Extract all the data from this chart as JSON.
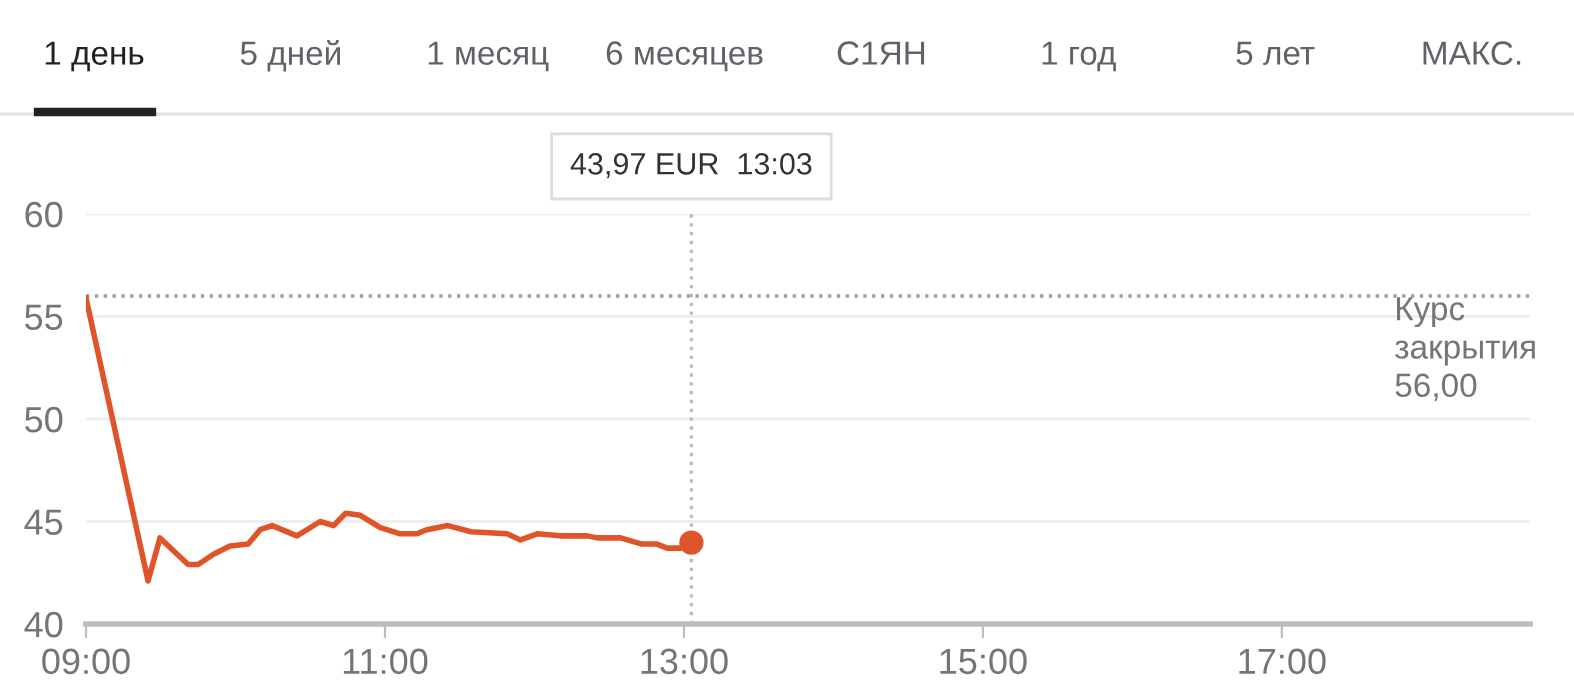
{
  "chart_data": {
    "type": "line",
    "x": [
      9.0,
      9.415,
      9.495,
      9.683,
      9.75,
      9.853,
      9.964,
      10.085,
      10.165,
      10.246,
      10.411,
      10.567,
      10.656,
      10.737,
      10.835,
      10.969,
      11.103,
      11.214,
      11.28,
      11.42,
      11.576,
      11.817,
      11.906,
      12.018,
      12.174,
      12.353,
      12.42,
      12.576,
      12.719,
      12.82,
      12.888,
      12.977,
      13.05
    ],
    "series": [
      {
        "color": "#e0542a",
        "values": [
          55.9,
          42.1,
          44.2,
          42.9,
          42.9,
          43.4,
          43.8,
          43.9,
          44.6,
          44.8,
          44.3,
          45.0,
          44.8,
          45.4,
          45.3,
          44.7,
          44.4,
          44.4,
          44.6,
          44.8,
          44.5,
          44.4,
          44.1,
          44.4,
          44.3,
          44.3,
          44.2,
          44.2,
          43.9,
          43.9,
          43.7,
          43.7,
          43.97
        ]
      }
    ],
    "xlim": [
      9.0,
      18.66
    ],
    "ylim": [
      40,
      60
    ],
    "xticks": [
      {
        "value": 9,
        "label": "09:00"
      },
      {
        "value": 11,
        "label": "11:00"
      },
      {
        "value": 13,
        "label": "13:00"
      },
      {
        "value": 15,
        "label": "15:00"
      },
      {
        "value": 17,
        "label": "17:00"
      }
    ],
    "yticks": [
      40,
      45,
      50,
      55,
      60
    ],
    "grid": "y",
    "line_style": "solid",
    "ref_lines": [
      {
        "axis": "y",
        "value": 56,
        "label": "Курс\nзакрытия\n56,00",
        "color": "#9e9e9e",
        "line_style": "dotted"
      },
      {
        "axis": "x",
        "value": 13.05,
        "color": "#bdbdbd",
        "line_style": "dotted"
      }
    ],
    "annotations": [
      "43,97 EUR  13:03",
      "1 день",
      "5 дней",
      "1 месяц",
      "6 месяцев",
      "С1ЯН",
      "1 год",
      "5 лет",
      "МАКС."
    ]
  }
}
